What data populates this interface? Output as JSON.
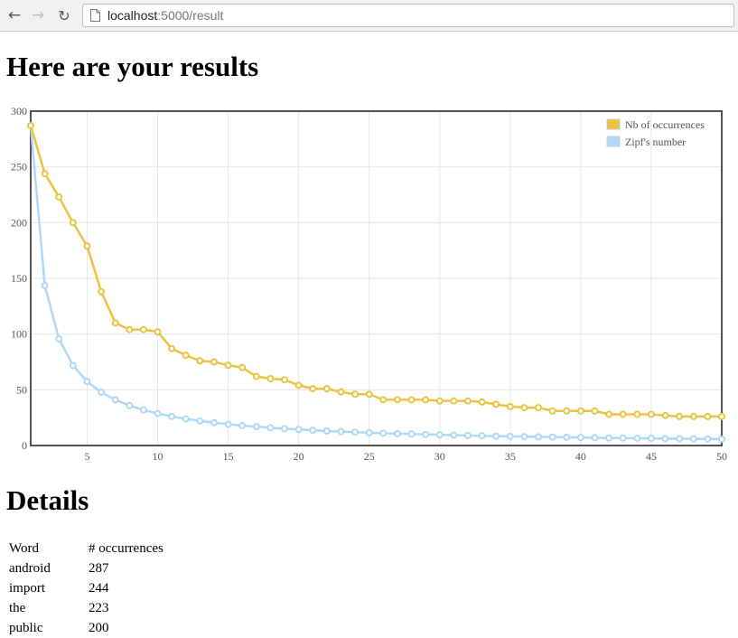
{
  "browser": {
    "url_host": "localhost",
    "url_path": ":5000/result"
  },
  "page": {
    "title": "Here are your results",
    "details_title": "Details"
  },
  "chart_data": {
    "type": "line",
    "x": [
      1,
      2,
      3,
      4,
      5,
      6,
      7,
      8,
      9,
      10,
      11,
      12,
      13,
      14,
      15,
      16,
      17,
      18,
      19,
      20,
      21,
      22,
      23,
      24,
      25,
      26,
      27,
      28,
      29,
      30,
      31,
      32,
      33,
      34,
      35,
      36,
      37,
      38,
      39,
      40,
      41,
      42,
      43,
      44,
      45,
      46,
      47,
      48,
      49,
      50
    ],
    "series": [
      {
        "name": "Nb of occurrences",
        "color": "#edc240",
        "values": [
          287,
          244,
          223,
          200,
          179,
          138,
          110,
          104,
          104,
          102,
          87,
          81,
          76,
          75,
          72,
          70,
          62,
          60,
          59,
          54,
          51,
          51,
          48,
          46,
          46,
          41,
          41,
          41,
          41,
          40,
          40,
          40,
          39,
          37,
          35,
          34,
          34,
          31,
          31,
          31,
          31,
          28,
          28,
          28,
          28,
          27,
          26,
          26,
          26,
          26
        ]
      },
      {
        "name": "Zipf's number",
        "color": "#afd8f8",
        "values": [
          287,
          143.5,
          95.7,
          71.8,
          57.4,
          47.8,
          41,
          35.9,
          31.9,
          28.7,
          26.1,
          23.9,
          22.1,
          20.5,
          19.1,
          17.9,
          16.9,
          15.9,
          15.1,
          14.4,
          13.7,
          13,
          12.5,
          12,
          11.5,
          11,
          10.6,
          10.3,
          9.9,
          9.6,
          9.3,
          9,
          8.7,
          8.4,
          8.2,
          8,
          7.8,
          7.6,
          7.4,
          7.2,
          7,
          6.8,
          6.7,
          6.5,
          6.4,
          6.2,
          6.1,
          6,
          5.9,
          5.7
        ]
      }
    ],
    "xlim": [
      1,
      50
    ],
    "ylim": [
      0,
      300
    ],
    "xticks": [
      5,
      10,
      15,
      20,
      25,
      30,
      35,
      40,
      45,
      50
    ],
    "yticks": [
      0,
      50,
      100,
      150,
      200,
      250,
      300
    ],
    "grid": true,
    "legend_position": "top-right"
  },
  "details": {
    "headers": [
      "Word",
      "# occurrences"
    ],
    "rows": [
      [
        "android",
        "287"
      ],
      [
        "import",
        "244"
      ],
      [
        "the",
        "223"
      ],
      [
        "public",
        "200"
      ]
    ]
  }
}
